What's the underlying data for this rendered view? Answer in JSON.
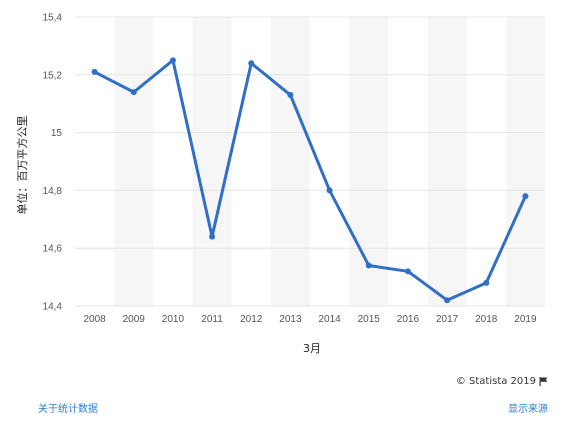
{
  "chart_data": {
    "type": "line",
    "categories": [
      "2008",
      "2009",
      "2010",
      "2011",
      "2012",
      "2013",
      "2014",
      "2015",
      "2016",
      "2017",
      "2018",
      "2019"
    ],
    "series": [
      {
        "values": [
          15.21,
          15.14,
          15.25,
          14.64,
          15.24,
          15.13,
          14.8,
          14.54,
          14.52,
          14.42,
          14.48,
          14.78
        ]
      }
    ],
    "yticks": [
      14.4,
      14.6,
      14.8,
      15,
      15.2,
      15.4
    ],
    "ytick_labels": [
      "14,4",
      "14,6",
      "14,8",
      "15",
      "15,2",
      "15,4"
    ],
    "ylim": [
      14.4,
      15.4
    ],
    "xlabel": "3月",
    "ylabel": "单位：百万平方公里",
    "grid": true,
    "legend": "none",
    "colors": {
      "line": "#2f6fc6",
      "band": "#f6f6f6",
      "grid": "#e4e4e4"
    }
  },
  "footer": {
    "about_link": "关于统计数据",
    "source_link": "显示来源",
    "credit": "© Statista 2019"
  },
  "icons": {
    "credit_icon": "flag-icon"
  }
}
